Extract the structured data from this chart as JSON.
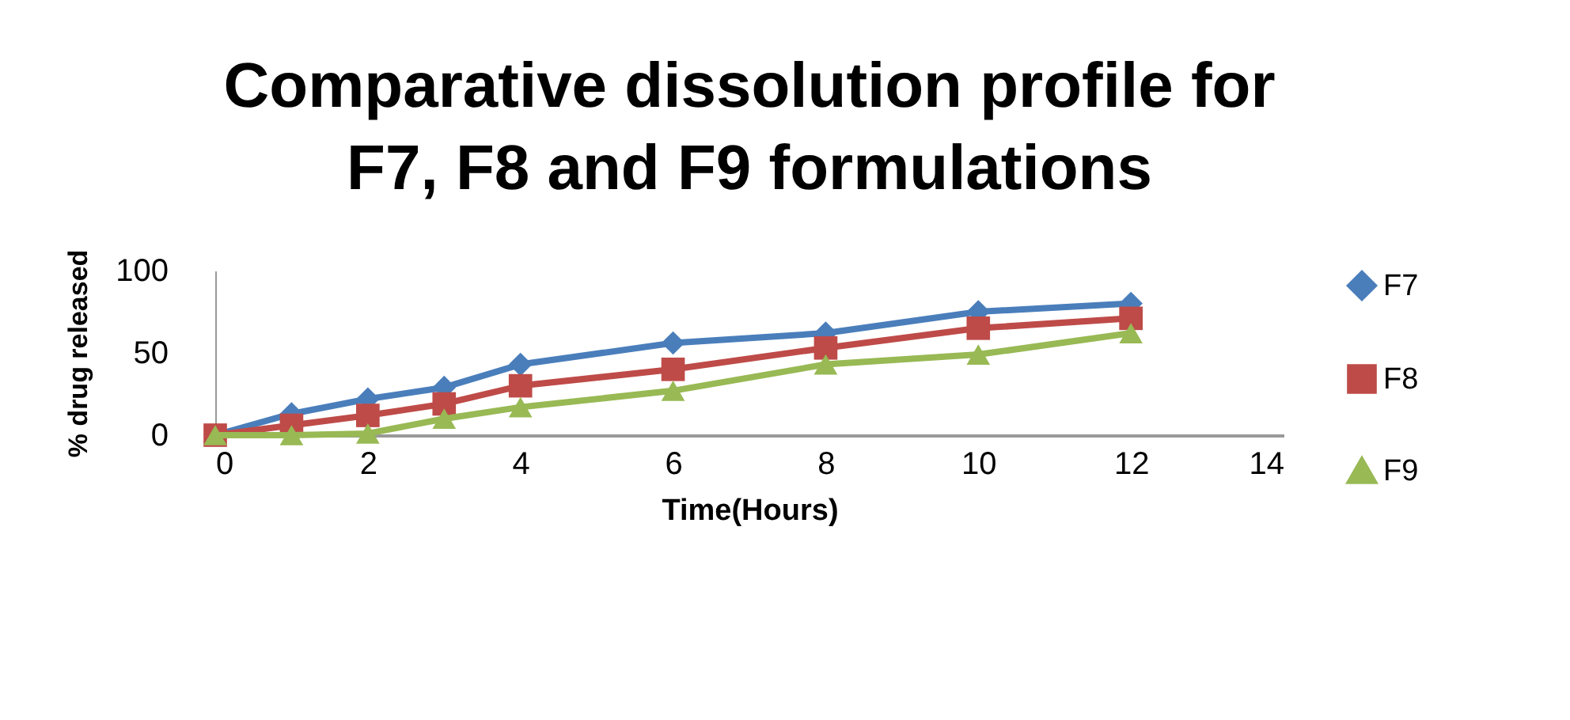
{
  "chart_data": {
    "type": "line",
    "title": [
      "Comparative dissolution profile for",
      "F7, F8 and F9 formulations"
    ],
    "xlabel": "Time(Hours)",
    "ylabel": "% drug released",
    "x": [
      0,
      1,
      2,
      3,
      4,
      6,
      8,
      10,
      12
    ],
    "series": [
      {
        "name": "F7",
        "color": "#4a7ebb",
        "marker": "diamond",
        "values": [
          0,
          13,
          22,
          29,
          43,
          56,
          62,
          75,
          80
        ]
      },
      {
        "name": "F8",
        "color": "#be4b48",
        "marker": "square",
        "values": [
          0,
          6,
          12,
          19,
          30,
          40,
          53,
          65,
          71
        ]
      },
      {
        "name": "F9",
        "color": "#98b954",
        "marker": "triangle",
        "values": [
          0,
          0,
          1,
          10,
          17,
          27,
          43,
          49,
          62
        ]
      }
    ],
    "xlim": [
      0,
      14
    ],
    "xticks": [
      0,
      2,
      4,
      6,
      8,
      10,
      12,
      14
    ],
    "ylim": [
      0,
      100
    ],
    "yticks": [
      0,
      50,
      100
    ],
    "grid": false,
    "legend": "right"
  }
}
